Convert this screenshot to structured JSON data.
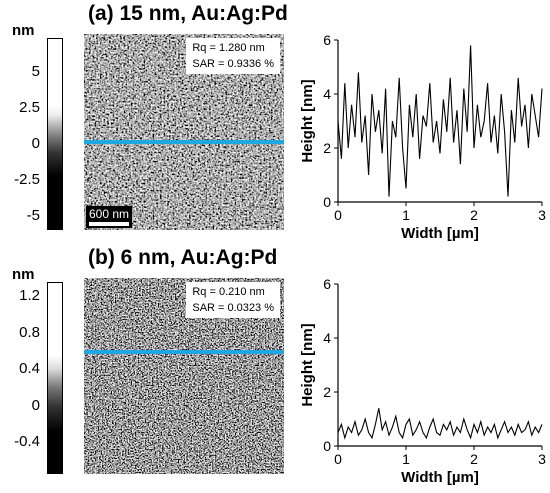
{
  "panels": [
    {
      "title": "(a) 15 nm, Au:Ag:Pd",
      "colorbar": {
        "unit": "nm",
        "ticks": [
          "5",
          "2.5",
          "0",
          "-2.5",
          "-5"
        ]
      },
      "stats": {
        "rq": "Rq = 1.280 nm",
        "sar": "SAR = 0.9336 %"
      },
      "scale_bar": "600 nm",
      "line_color": "#1ea7e1"
    },
    {
      "title": "(b) 6 nm, Au:Ag:Pd",
      "colorbar": {
        "unit": "nm",
        "ticks": [
          "1.2",
          "0.8",
          "0.4",
          "0",
          "-0.4"
        ]
      },
      "stats": {
        "rq": "Rq = 0.210 nm",
        "sar": "SAR = 0.0323 %"
      },
      "line_color": "#1ea7e1"
    }
  ],
  "chart_data": [
    {
      "type": "line",
      "xlabel": "Width [µm]",
      "ylabel": "Height [nm]",
      "xlim": [
        0,
        3
      ],
      "ylim": [
        0,
        6
      ],
      "xticks": [
        "0",
        "1",
        "2",
        "3"
      ],
      "yticks": [
        "0",
        "2",
        "4",
        "6"
      ],
      "series": [
        {
          "x": [
            0,
            0.05,
            0.1,
            0.15,
            0.2,
            0.25,
            0.3,
            0.35,
            0.4,
            0.45,
            0.5,
            0.55,
            0.6,
            0.65,
            0.7,
            0.75,
            0.8,
            0.85,
            0.9,
            0.95,
            1.0,
            1.05,
            1.1,
            1.15,
            1.2,
            1.25,
            1.3,
            1.35,
            1.4,
            1.45,
            1.5,
            1.55,
            1.6,
            1.65,
            1.7,
            1.75,
            1.8,
            1.85,
            1.9,
            1.95,
            2.0,
            2.05,
            2.1,
            2.15,
            2.2,
            2.25,
            2.3,
            2.35,
            2.4,
            2.45,
            2.5,
            2.55,
            2.6,
            2.65,
            2.7,
            2.75,
            2.8,
            2.85,
            2.9,
            2.95,
            3.0
          ],
          "y": [
            3.0,
            1.6,
            4.4,
            2.0,
            3.6,
            2.4,
            4.8,
            2.2,
            3.2,
            1.0,
            4.0,
            2.6,
            3.4,
            1.8,
            4.2,
            0.2,
            3.0,
            2.4,
            4.6,
            2.0,
            0.5,
            3.6,
            2.4,
            4.0,
            1.6,
            3.2,
            2.8,
            4.4,
            2.2,
            3.0,
            1.8,
            3.8,
            2.6,
            4.6,
            2.2,
            3.4,
            1.4,
            4.2,
            2.6,
            5.8,
            2.0,
            3.6,
            2.4,
            3.0,
            4.4,
            2.2,
            3.2,
            1.8,
            4.0,
            2.6,
            0.2,
            3.4,
            2.2,
            4.6,
            2.8,
            3.6,
            2.0,
            4.0,
            3.2,
            2.4,
            4.2
          ]
        }
      ]
    },
    {
      "type": "line",
      "xlabel": "Width [µm]",
      "ylabel": "Height [nm]",
      "xlim": [
        0,
        3
      ],
      "ylim": [
        0,
        6
      ],
      "xticks": [
        "0",
        "1",
        "2",
        "3"
      ],
      "yticks": [
        "0",
        "2",
        "4",
        "6"
      ],
      "series": [
        {
          "x": [
            0,
            0.05,
            0.1,
            0.15,
            0.2,
            0.25,
            0.3,
            0.35,
            0.4,
            0.45,
            0.5,
            0.55,
            0.6,
            0.65,
            0.7,
            0.75,
            0.8,
            0.85,
            0.9,
            0.95,
            1.0,
            1.05,
            1.1,
            1.15,
            1.2,
            1.25,
            1.3,
            1.35,
            1.4,
            1.45,
            1.5,
            1.55,
            1.6,
            1.65,
            1.7,
            1.75,
            1.8,
            1.85,
            1.9,
            1.95,
            2.0,
            2.05,
            2.1,
            2.15,
            2.2,
            2.25,
            2.3,
            2.35,
            2.4,
            2.45,
            2.5,
            2.55,
            2.6,
            2.65,
            2.7,
            2.75,
            2.8,
            2.85,
            2.9,
            2.95,
            3.0
          ],
          "y": [
            0.5,
            0.8,
            0.3,
            0.7,
            0.5,
            0.9,
            0.4,
            0.6,
            1.0,
            0.5,
            0.3,
            0.8,
            1.4,
            0.6,
            0.9,
            0.4,
            0.7,
            1.1,
            0.5,
            0.3,
            0.8,
            1.0,
            0.4,
            0.6,
            0.9,
            0.5,
            0.3,
            0.7,
            1.0,
            0.5,
            0.4,
            0.8,
            0.6,
            0.9,
            0.4,
            0.7,
            0.5,
            1.0,
            0.6,
            0.3,
            0.8,
            0.5,
            0.9,
            0.4,
            0.7,
            0.5,
            0.8,
            0.3,
            0.6,
            0.9,
            0.5,
            0.7,
            0.4,
            0.8,
            0.5,
            0.6,
            0.9,
            0.4,
            0.7,
            0.5,
            0.8
          ]
        }
      ]
    }
  ]
}
